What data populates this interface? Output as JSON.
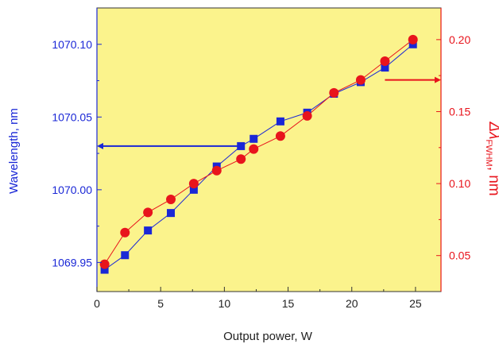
{
  "chart_data": {
    "type": "scatter",
    "title": "",
    "xlabel": "Output power, W",
    "ylabel_left": "Wavelength, nm",
    "ylabel_right_prefix": "Δλ",
    "ylabel_right_subscript": "FWHM",
    "ylabel_right_unit": ", nm",
    "xlim": [
      0,
      27
    ],
    "ylim_left": [
      1069.93,
      1070.125
    ],
    "ylim_right": [
      0.025,
      0.222
    ],
    "x_ticks": [
      "0",
      "5",
      "10",
      "15",
      "20",
      "25"
    ],
    "x_tick_values": [
      0,
      5,
      10,
      15,
      20,
      25
    ],
    "y_left_ticks": [
      "1069.95",
      "1070.00",
      "1070.05",
      "1070.10"
    ],
    "y_left_tick_values": [
      1069.95,
      1070.0,
      1070.05,
      1070.1
    ],
    "y_right_ticks": [
      "0.05",
      "0.10",
      "0.15",
      "0.20"
    ],
    "y_right_tick_values": [
      0.05,
      0.1,
      0.15,
      0.2
    ],
    "background_color": "#fbf38c",
    "series": [
      {
        "axis": "left",
        "marker": "square",
        "color": "#1a27d6",
        "x": [
          0.6,
          2.2,
          4.0,
          5.8,
          7.6,
          9.4,
          11.3,
          12.3,
          14.4,
          16.5,
          18.6,
          20.7,
          22.6,
          24.8
        ],
        "y": [
          1069.945,
          1069.955,
          1069.972,
          1069.984,
          1070.0,
          1070.016,
          1070.03,
          1070.035,
          1070.047,
          1070.053,
          1070.066,
          1070.074,
          1070.084,
          1070.1
        ]
      },
      {
        "axis": "right",
        "marker": "circle",
        "color": "#e8141c",
        "x": [
          0.6,
          2.2,
          4.0,
          5.8,
          7.6,
          9.4,
          11.3,
          12.3,
          14.4,
          16.5,
          18.6,
          20.7,
          22.6,
          24.8
        ],
        "y": [
          0.044,
          0.066,
          0.08,
          0.089,
          0.1,
          0.109,
          0.117,
          0.124,
          0.133,
          0.147,
          0.163,
          0.172,
          0.185,
          0.2
        ]
      }
    ],
    "axis_arrows": [
      {
        "axis": "left",
        "color": "#1a27d6",
        "x_from": 11.3,
        "y": 1070.03
      },
      {
        "axis": "right",
        "color": "#e8141c",
        "x_from": 22.6,
        "y": 0.172
      }
    ],
    "left_axis_color": "#1a27d6",
    "right_axis_color": "#e8141c"
  }
}
